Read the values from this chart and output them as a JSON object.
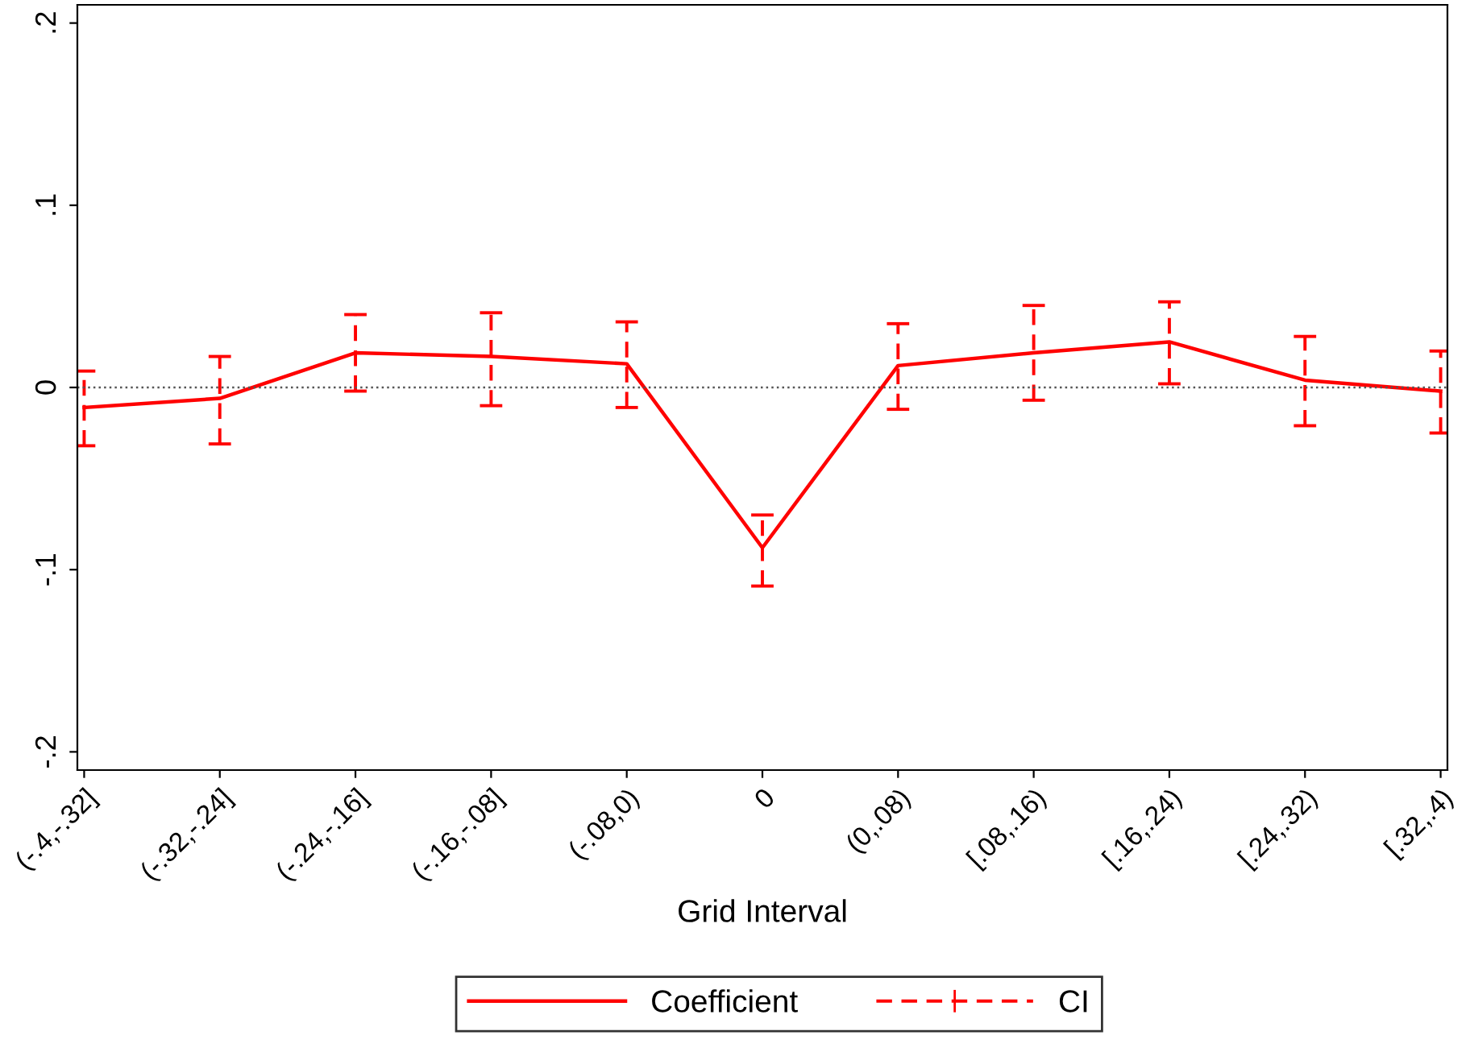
{
  "chart_data": {
    "type": "line",
    "xlabel": "Grid Interval",
    "categories": [
      "(-.4,-.32]",
      "(-.32,-.24]",
      "(-.24,-.16]",
      "(-.16,-.08]",
      "(-.08,0)",
      "0",
      "(0,.08)",
      "[.08,.16)",
      "[.16,.24)",
      "[.24,.32)",
      "[.32,.4)"
    ],
    "series": [
      {
        "name": "Coefficient",
        "color": "#ff0000",
        "line_style": "solid",
        "values": [
          -0.011,
          -0.006,
          0.019,
          0.017,
          0.013,
          -0.088,
          0.012,
          0.019,
          0.025,
          0.004,
          -0.002
        ],
        "errors": [
          [
            -0.032,
            0.009
          ],
          [
            -0.031,
            0.017
          ],
          [
            -0.002,
            0.04
          ],
          [
            -0.01,
            0.041
          ],
          [
            -0.011,
            0.036
          ],
          [
            -0.109,
            -0.07
          ],
          [
            -0.012,
            0.035
          ],
          [
            -0.007,
            0.045
          ],
          [
            0.002,
            0.047
          ],
          [
            -0.021,
            0.028
          ],
          [
            -0.025,
            0.02
          ]
        ]
      }
    ],
    "annotations": [
      "CI"
    ],
    "ylim": [
      -0.21,
      0.21
    ],
    "yticks": [
      {
        "value": -0.2,
        "label": "-.2"
      },
      {
        "value": -0.1,
        "label": "-.1"
      },
      {
        "value": 0,
        "label": "0"
      },
      {
        "value": 0.1,
        "label": ".1"
      },
      {
        "value": 0.2,
        "label": ".2"
      }
    ],
    "ref_lines": [
      {
        "axis": "y",
        "value": 0,
        "label": null,
        "color": "#555555",
        "line_style": "dotted"
      }
    ],
    "grid": false,
    "legend": "bottom"
  }
}
